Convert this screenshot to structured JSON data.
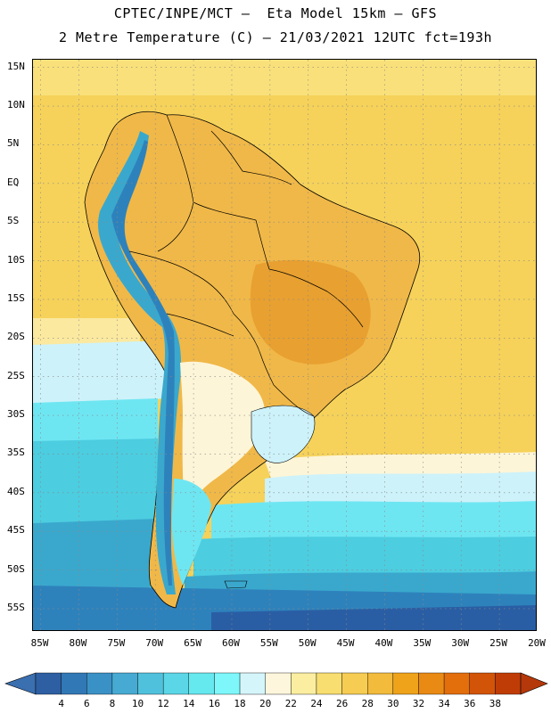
{
  "title": {
    "line1": "CPTEC/INPE/MCT –  Eta Model 15km – GFS",
    "line2": "2 Metre Temperature (C) – 21/03/2021 12UTC fct=193h"
  },
  "map": {
    "lat_range": [
      -58,
      16
    ],
    "lon_range": [
      -86,
      -20
    ],
    "lat_labels": [
      "15N",
      "10N",
      "5N",
      "EQ",
      "5S",
      "10S",
      "15S",
      "20S",
      "25S",
      "30S",
      "35S",
      "40S",
      "45S",
      "50S",
      "55S"
    ],
    "lat_values": [
      15,
      10,
      5,
      0,
      -5,
      -10,
      -15,
      -20,
      -25,
      -30,
      -35,
      -40,
      -45,
      -50,
      -55
    ],
    "lon_labels": [
      "85W",
      "80W",
      "75W",
      "70W",
      "65W",
      "60W",
      "55W",
      "50W",
      "45W",
      "40W",
      "35W",
      "30W",
      "25W",
      "20W"
    ],
    "lon_values": [
      -85,
      -80,
      -75,
      -70,
      -65,
      -60,
      -55,
      -50,
      -45,
      -40,
      -35,
      -30,
      -25,
      -20
    ],
    "colors": {
      "ocean_warm": "#f6d25a",
      "land_warm": "#f0b848",
      "hot": "#e8a030",
      "mild": "#fdf5d8",
      "cool": "#cdf2fa",
      "cold_1": "#6ee6f2",
      "cold_2": "#4ccde0",
      "cold_3": "#3aa8cd",
      "cold_4": "#2e82bc",
      "cold_5": "#2a5ea4"
    }
  },
  "legend": {
    "labels": [
      "4",
      "6",
      "8",
      "10",
      "12",
      "14",
      "16",
      "18",
      "20",
      "22",
      "24",
      "26",
      "28",
      "30",
      "32",
      "34",
      "36",
      "38"
    ],
    "colors": [
      "#2e5fa3",
      "#3178b6",
      "#3a91c6",
      "#47aad2",
      "#50c1dc",
      "#5bd6e6",
      "#66e8ef",
      "#7ef7fb",
      "#d4f6fb",
      "#fdf6dc",
      "#fbeea0",
      "#f8de70",
      "#f6cc52",
      "#f2bb3c",
      "#efa31a",
      "#e98a14",
      "#e26e0c",
      "#d25408",
      "#c03c06"
    ],
    "left_arrow_color": "#3a6fb0",
    "right_arrow_color": "#b5380a"
  }
}
